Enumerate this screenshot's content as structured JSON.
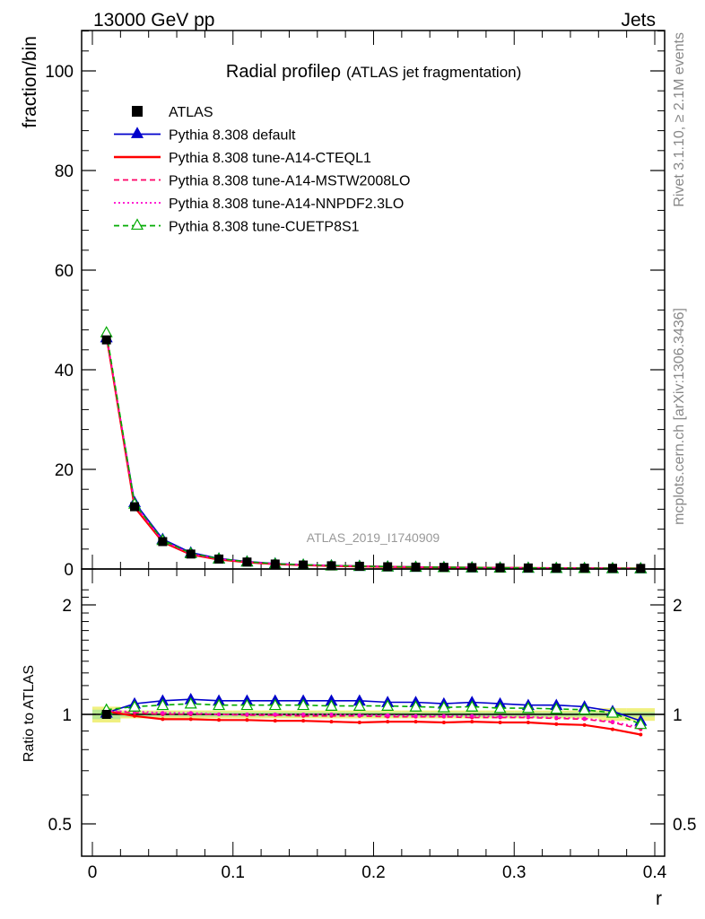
{
  "header": {
    "left": "13000 GeV pp",
    "right": "Jets"
  },
  "side_text": {
    "rivet": "Rivet 3.1.10, ≥ 2.1M events",
    "source": "mcplots.cern.ch [arXiv:1306.3436]"
  },
  "chart_data": {
    "type": "line",
    "title": "Radial profileρ",
    "subtitle": "(ATLAS jet fragmentation)",
    "analysis": "ATLAS_2019_I1740909",
    "ylabel": "fraction/bin",
    "ratio_ylabel": "Ratio to ATLAS",
    "xlabel": "r",
    "xlim": [
      0,
      0.4
    ],
    "ylim": [
      0,
      108
    ],
    "ratio_ylim": [
      0.4,
      2.3
    ],
    "x_ticks": [
      "0",
      "0.1",
      "0.2",
      "0.3",
      "0.4"
    ],
    "y_ticks": [
      "0",
      "20",
      "40",
      "60",
      "80",
      "100"
    ],
    "ratio_ticks": [
      "0.5",
      "1",
      "2"
    ],
    "x": [
      0.01,
      0.03,
      0.05,
      0.07,
      0.09,
      0.11,
      0.13,
      0.15,
      0.17,
      0.19,
      0.21,
      0.23,
      0.25,
      0.27,
      0.29,
      0.31,
      0.33,
      0.35,
      0.37,
      0.39
    ],
    "data": {
      "name": "ATLAS",
      "color": "#000000",
      "values": [
        46.0,
        12.5,
        5.5,
        3.0,
        2.0,
        1.4,
        1.0,
        0.8,
        0.65,
        0.55,
        0.45,
        0.38,
        0.33,
        0.28,
        0.24,
        0.21,
        0.18,
        0.16,
        0.14,
        0.12
      ]
    },
    "series": [
      {
        "name": "Pythia 8.308 default",
        "color": "#0000cc",
        "style": "solid-triangle",
        "values": [
          46.5,
          13.4,
          6.0,
          3.3,
          2.1,
          1.5,
          1.1,
          0.85,
          0.7,
          0.6,
          0.49,
          0.41,
          0.36,
          0.3,
          0.26,
          0.22,
          0.19,
          0.17,
          0.14,
          0.12
        ],
        "ratio": [
          1.01,
          1.07,
          1.09,
          1.1,
          1.09,
          1.09,
          1.09,
          1.09,
          1.09,
          1.09,
          1.08,
          1.08,
          1.07,
          1.08,
          1.07,
          1.06,
          1.06,
          1.05,
          1.02,
          0.96
        ]
      },
      {
        "name": "Pythia 8.308 tune-A14-CTEQL1",
        "color": "#ff0000",
        "style": "solid",
        "values": [
          46.8,
          12.4,
          5.4,
          2.9,
          1.9,
          1.35,
          0.97,
          0.77,
          0.62,
          0.52,
          0.43,
          0.36,
          0.31,
          0.27,
          0.23,
          0.2,
          0.17,
          0.15,
          0.13,
          0.11
        ],
        "ratio": [
          1.02,
          0.99,
          0.97,
          0.97,
          0.965,
          0.965,
          0.96,
          0.96,
          0.955,
          0.95,
          0.955,
          0.955,
          0.95,
          0.955,
          0.95,
          0.95,
          0.94,
          0.935,
          0.91,
          0.88
        ]
      },
      {
        "name": "Pythia 8.308 tune-A14-MSTW2008LO",
        "color": "#ff0066",
        "style": "dashed",
        "values": [
          47.0,
          12.8,
          5.6,
          3.0,
          2.0,
          1.4,
          1.0,
          0.8,
          0.65,
          0.55,
          0.45,
          0.38,
          0.33,
          0.28,
          0.24,
          0.21,
          0.18,
          0.16,
          0.14,
          0.12
        ],
        "ratio": [
          1.02,
          1.01,
          1.0,
          1.0,
          1.0,
          0.995,
          0.995,
          0.99,
          0.99,
          0.99,
          0.985,
          0.985,
          0.985,
          0.98,
          0.98,
          0.98,
          0.975,
          0.97,
          0.95,
          0.91
        ]
      },
      {
        "name": "Pythia 8.308 tune-A14-NNPDF2.3LO",
        "color": "#ff00cc",
        "style": "dotted",
        "values": [
          47.0,
          12.9,
          5.7,
          3.05,
          2.02,
          1.42,
          1.01,
          0.81,
          0.66,
          0.56,
          0.46,
          0.38,
          0.33,
          0.28,
          0.24,
          0.21,
          0.18,
          0.16,
          0.14,
          0.12
        ],
        "ratio": [
          1.02,
          1.02,
          1.01,
          1.01,
          1.0,
          1.0,
          1.0,
          1.0,
          1.0,
          0.995,
          0.995,
          0.99,
          0.99,
          0.99,
          0.985,
          0.985,
          0.98,
          0.975,
          0.955,
          0.92
        ]
      },
      {
        "name": "Pythia 8.308 tune-CUETP8S1",
        "color": "#00aa00",
        "style": "dashed-open-triangle",
        "values": [
          47.5,
          13.1,
          5.8,
          3.15,
          2.08,
          1.46,
          1.05,
          0.84,
          0.68,
          0.58,
          0.47,
          0.4,
          0.34,
          0.29,
          0.25,
          0.22,
          0.19,
          0.17,
          0.14,
          0.12
        ],
        "ratio": [
          1.03,
          1.05,
          1.06,
          1.07,
          1.06,
          1.06,
          1.06,
          1.06,
          1.055,
          1.055,
          1.055,
          1.05,
          1.045,
          1.05,
          1.04,
          1.04,
          1.035,
          1.03,
          1.01,
          0.94
        ]
      }
    ]
  }
}
